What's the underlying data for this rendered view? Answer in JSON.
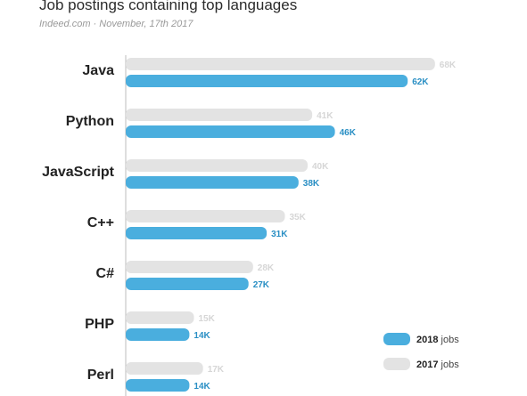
{
  "chart_data": {
    "type": "bar",
    "orientation": "horizontal",
    "title": "Job postings containing top languages",
    "subtitle": "Indeed.com · November, 17th 2017",
    "categories": [
      "Java",
      "Python",
      "JavaScript",
      "C++",
      "C#",
      "PHP",
      "Perl"
    ],
    "series": [
      {
        "name": "2017",
        "color": "#e3e3e3",
        "label_color": "#d6d6d6",
        "values": [
          68,
          41,
          40,
          35,
          28,
          15,
          17
        ],
        "labels": [
          "68K",
          "41K",
          "40K",
          "35K",
          "28K",
          "15K",
          "17K"
        ]
      },
      {
        "name": "2018",
        "color": "#4aaede",
        "label_color": "#2a8fc4",
        "values": [
          62,
          46,
          38,
          31,
          27,
          14,
          14
        ],
        "labels": [
          "62K",
          "46K",
          "38K",
          "31K",
          "27K",
          "14K",
          "14K"
        ]
      }
    ],
    "xlim": [
      0,
      70
    ],
    "grid": false,
    "legend": {
      "placement": "bottom-right",
      "entries": [
        {
          "bold": "2018",
          "rest": "jobs",
          "color": "#4aaede"
        },
        {
          "bold": "2017",
          "rest": "jobs",
          "color": "#e3e3e3"
        }
      ]
    }
  }
}
